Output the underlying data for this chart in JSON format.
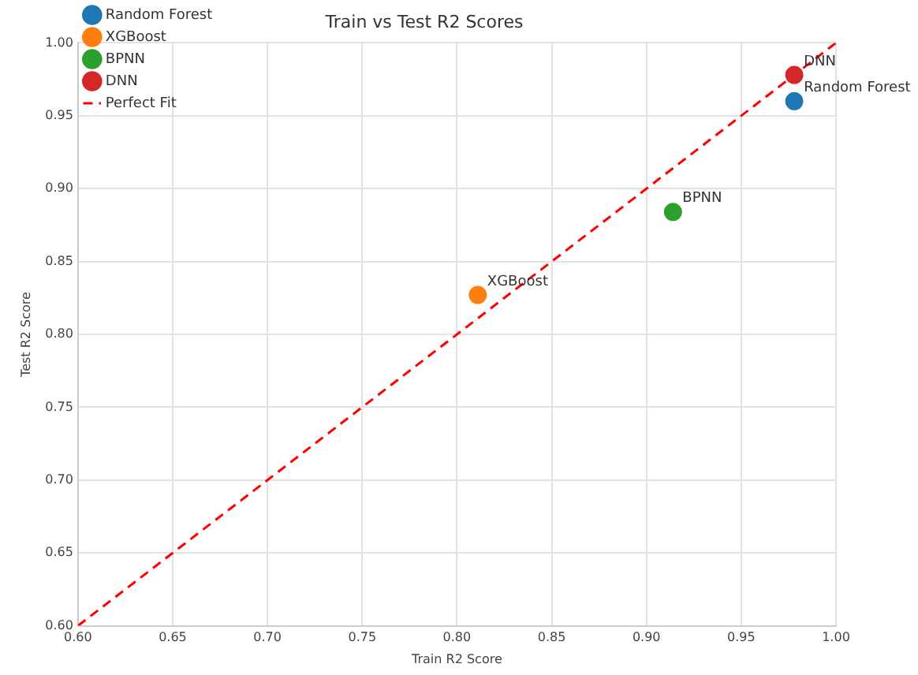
{
  "chart_data": {
    "type": "scatter",
    "title": "Train vs Test R2 Scores",
    "xlabel": "Train R2 Score",
    "ylabel": "Test R2 Score",
    "xlim": [
      0.6,
      1.0
    ],
    "xticks": [
      {
        "value": 0.6,
        "label": "0.60"
      },
      {
        "value": 0.65,
        "label": "0.65"
      },
      {
        "value": 0.7,
        "label": "0.70"
      },
      {
        "value": 0.75,
        "label": "0.75"
      },
      {
        "value": 0.8,
        "label": "0.80"
      },
      {
        "value": 0.85,
        "label": "0.85"
      },
      {
        "value": 0.9,
        "label": "0.90"
      },
      {
        "value": 0.95,
        "label": "0.95"
      },
      {
        "value": 1.0,
        "label": "1.00"
      }
    ],
    "ylim": [
      0.6,
      1.0
    ],
    "yticks": [
      {
        "value": 0.6,
        "label": "0.60"
      },
      {
        "value": 0.65,
        "label": "0.65"
      },
      {
        "value": 0.7,
        "label": "0.70"
      },
      {
        "value": 0.75,
        "label": "0.75"
      },
      {
        "value": 0.8,
        "label": "0.80"
      },
      {
        "value": 0.85,
        "label": "0.85"
      },
      {
        "value": 0.9,
        "label": "0.90"
      },
      {
        "value": 0.95,
        "label": "0.95"
      },
      {
        "value": 1.0,
        "label": "1.00"
      }
    ],
    "grid": true,
    "legend": "top left",
    "marker": "circle",
    "series": [
      {
        "name": "Random Forest",
        "color": "#1f77b4",
        "x": [
          0.978
        ],
        "values": [
          0.96
        ]
      },
      {
        "name": "XGBoost",
        "color": "#ff7f0e",
        "x": [
          0.811
        ],
        "values": [
          0.827
        ]
      },
      {
        "name": "BPNN",
        "color": "#2ca02c",
        "x": [
          0.914
        ],
        "values": [
          0.884
        ]
      },
      {
        "name": "DNN",
        "color": "#d62728",
        "x": [
          0.978
        ],
        "values": [
          0.978
        ]
      },
      {
        "name": "Perfect Fit",
        "type": "line",
        "color": "#ff0000",
        "line_style": "dashed",
        "marker": "none",
        "x": [
          0.6,
          1.0
        ],
        "values": [
          0.6,
          1.0
        ]
      }
    ]
  }
}
